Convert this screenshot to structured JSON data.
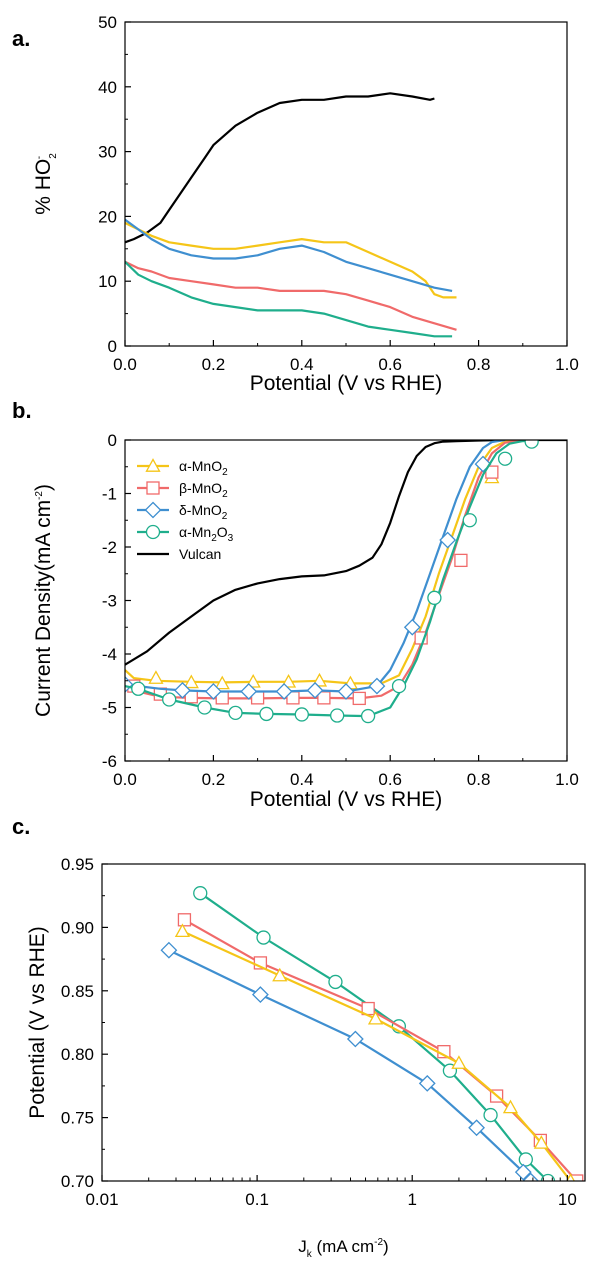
{
  "colors": {
    "alpha_MnO2": "#f5c518",
    "beta_MnO2": "#f06a6a",
    "delta_MnO2": "#3f8fd0",
    "alpha_Mn2O3": "#1fae8c",
    "Vulcan": "#000000"
  },
  "chart_data": [
    {
      "panel": "a.",
      "type": "line",
      "xlabel": "Potential (V vs RHE)",
      "ylabel": "% HO2-",
      "xlim": [
        0.0,
        1.0
      ],
      "ylim": [
        0,
        50
      ],
      "xticks": [
        "0.0",
        "0.2",
        "0.4",
        "0.6",
        "0.8",
        "1.0"
      ],
      "yticks": [
        "0",
        "10",
        "20",
        "30",
        "40",
        "50"
      ],
      "grid": false,
      "series": [
        {
          "key": "Vulcan",
          "x": [
            0.0,
            0.02,
            0.05,
            0.08,
            0.1,
            0.12,
            0.15,
            0.18,
            0.2,
            0.25,
            0.3,
            0.35,
            0.4,
            0.45,
            0.5,
            0.55,
            0.6,
            0.65,
            0.69,
            0.7
          ],
          "y": [
            16,
            16.5,
            17.5,
            19,
            21,
            23,
            26,
            29,
            31,
            34,
            36,
            37.5,
            38,
            38,
            38.5,
            38.5,
            39,
            38.5,
            38,
            38.2
          ]
        },
        {
          "key": "alpha_MnO2",
          "x": [
            0.0,
            0.03,
            0.06,
            0.1,
            0.15,
            0.2,
            0.25,
            0.3,
            0.35,
            0.4,
            0.45,
            0.5,
            0.55,
            0.6,
            0.65,
            0.68,
            0.7,
            0.72,
            0.75
          ],
          "y": [
            19,
            18,
            17,
            16,
            15.5,
            15,
            15,
            15.5,
            16,
            16.5,
            16,
            16,
            14.5,
            13,
            11.5,
            10,
            8,
            7.5,
            7.5
          ]
        },
        {
          "key": "delta_MnO2",
          "x": [
            0.0,
            0.03,
            0.06,
            0.1,
            0.15,
            0.2,
            0.25,
            0.3,
            0.35,
            0.4,
            0.45,
            0.5,
            0.55,
            0.6,
            0.65,
            0.7,
            0.74
          ],
          "y": [
            19.5,
            18,
            16.5,
            15,
            14,
            13.5,
            13.5,
            14,
            15,
            15.5,
            14.5,
            13,
            12,
            11,
            10,
            9,
            8.5
          ]
        },
        {
          "key": "beta_MnO2",
          "x": [
            0.0,
            0.03,
            0.06,
            0.1,
            0.15,
            0.2,
            0.25,
            0.3,
            0.35,
            0.4,
            0.45,
            0.5,
            0.55,
            0.6,
            0.65,
            0.7,
            0.75
          ],
          "y": [
            13,
            12,
            11.5,
            10.5,
            10,
            9.5,
            9,
            9,
            8.5,
            8.5,
            8.5,
            8,
            7,
            6,
            4.5,
            3.5,
            2.5
          ]
        },
        {
          "key": "alpha_Mn2O3",
          "x": [
            0.0,
            0.03,
            0.06,
            0.1,
            0.15,
            0.2,
            0.25,
            0.3,
            0.35,
            0.4,
            0.45,
            0.5,
            0.55,
            0.6,
            0.65,
            0.7,
            0.74
          ],
          "y": [
            13,
            11,
            10,
            9,
            7.5,
            6.5,
            6,
            5.5,
            5.5,
            5.5,
            5,
            4,
            3,
            2.5,
            2,
            1.5,
            1.5
          ]
        }
      ]
    },
    {
      "panel": "b.",
      "type": "line",
      "xlabel": "Potential (V vs RHE)",
      "ylabel": "Current Density(mA cm-2)",
      "xlim": [
        0.0,
        1.0
      ],
      "ylim": [
        -6,
        0
      ],
      "xticks": [
        "0.0",
        "0.2",
        "0.4",
        "0.6",
        "0.8",
        "1.0"
      ],
      "yticks": [
        "0",
        "-1",
        "-2",
        "-3",
        "-4",
        "-5",
        "-6"
      ],
      "grid": false,
      "legend_position": "top-left",
      "legend": [
        {
          "key": "alpha_MnO2",
          "prefix": "α-MnO",
          "sub": "2",
          "mid": "",
          "sub2": "",
          "marker": "triangle"
        },
        {
          "key": "beta_MnO2",
          "prefix": "β-MnO",
          "sub": "2",
          "mid": "",
          "sub2": "",
          "marker": "square"
        },
        {
          "key": "delta_MnO2",
          "prefix": "δ-MnO",
          "sub": "2",
          "mid": "",
          "sub2": "",
          "marker": "diamond"
        },
        {
          "key": "alpha_Mn2O3",
          "prefix": "α-Mn",
          "sub": "2",
          "mid": "O",
          "sub2": "3",
          "marker": "circle"
        },
        {
          "key": "Vulcan",
          "prefix": "Vulcan",
          "sub": "",
          "mid": "",
          "sub2": "",
          "marker": "none"
        }
      ],
      "series": [
        {
          "key": "Vulcan",
          "marker": "none",
          "x": [
            0.0,
            0.05,
            0.1,
            0.15,
            0.2,
            0.25,
            0.3,
            0.35,
            0.4,
            0.45,
            0.5,
            0.53,
            0.56,
            0.58,
            0.6,
            0.62,
            0.64,
            0.66,
            0.68,
            0.7,
            0.72,
            0.75,
            0.8,
            0.85,
            0.9,
            0.95,
            1.0
          ],
          "y": [
            -4.2,
            -3.95,
            -3.6,
            -3.3,
            -3.0,
            -2.8,
            -2.68,
            -2.6,
            -2.55,
            -2.53,
            -2.45,
            -2.35,
            -2.2,
            -1.95,
            -1.55,
            -1.05,
            -0.6,
            -0.3,
            -0.13,
            -0.06,
            -0.03,
            -0.02,
            -0.01,
            0,
            0,
            0,
            0
          ]
        },
        {
          "key": "alpha_MnO2",
          "marker": "triangle",
          "x": [
            0.0,
            0.02,
            0.07,
            0.15,
            0.22,
            0.3,
            0.37,
            0.44,
            0.51,
            0.58,
            0.62,
            0.65,
            0.68,
            0.71,
            0.74,
            0.77,
            0.8,
            0.83,
            0.86,
            0.9
          ],
          "y": [
            -4.3,
            -4.45,
            -4.5,
            -4.52,
            -4.53,
            -4.52,
            -4.52,
            -4.5,
            -4.55,
            -4.55,
            -4.4,
            -3.9,
            -3.3,
            -2.5,
            -1.8,
            -1.1,
            -0.5,
            -0.15,
            -0.03,
            0
          ],
          "mx": [
            0.07,
            0.15,
            0.22,
            0.29,
            0.37,
            0.44,
            0.51,
            0.83
          ],
          "my": [
            -4.45,
            -4.53,
            -4.55,
            -4.52,
            -4.52,
            -4.5,
            -4.55,
            -0.7
          ]
        },
        {
          "key": "beta_MnO2",
          "marker": "square",
          "x": [
            0.0,
            0.03,
            0.08,
            0.15,
            0.22,
            0.3,
            0.38,
            0.45,
            0.53,
            0.58,
            0.62,
            0.65,
            0.68,
            0.71,
            0.74,
            0.77,
            0.8,
            0.83,
            0.86,
            0.9
          ],
          "y": [
            -4.55,
            -4.7,
            -4.8,
            -4.82,
            -4.83,
            -4.83,
            -4.82,
            -4.82,
            -4.83,
            -4.78,
            -4.6,
            -4.2,
            -3.6,
            -2.9,
            -2.2,
            -1.4,
            -0.7,
            -0.25,
            -0.05,
            0
          ],
          "mx": [
            0.02,
            0.08,
            0.15,
            0.22,
            0.3,
            0.38,
            0.45,
            0.53,
            0.67,
            0.76,
            0.83
          ],
          "my": [
            -4.6,
            -4.75,
            -4.8,
            -4.82,
            -4.82,
            -4.82,
            -4.82,
            -4.83,
            -3.7,
            -2.25,
            -0.6
          ]
        },
        {
          "key": "delta_MnO2",
          "marker": "diamond",
          "x": [
            0.0,
            0.03,
            0.08,
            0.13,
            0.2,
            0.28,
            0.36,
            0.43,
            0.5,
            0.57,
            0.6,
            0.63,
            0.66,
            0.69,
            0.72,
            0.75,
            0.78,
            0.81,
            0.83,
            0.86
          ],
          "y": [
            -4.55,
            -4.6,
            -4.65,
            -4.68,
            -4.7,
            -4.7,
            -4.7,
            -4.68,
            -4.7,
            -4.6,
            -4.3,
            -3.8,
            -3.2,
            -2.5,
            -1.8,
            -1.1,
            -0.5,
            -0.15,
            -0.04,
            0
          ],
          "mx": [
            0.0,
            0.13,
            0.2,
            0.28,
            0.36,
            0.43,
            0.5,
            0.57,
            0.65,
            0.73,
            0.81
          ],
          "my": [
            -4.57,
            -4.68,
            -4.7,
            -4.7,
            -4.7,
            -4.68,
            -4.7,
            -4.6,
            -3.5,
            -1.87,
            -0.45
          ]
        },
        {
          "key": "alpha_Mn2O3",
          "marker": "circle",
          "x": [
            0.0,
            0.03,
            0.1,
            0.18,
            0.25,
            0.32,
            0.4,
            0.48,
            0.55,
            0.6,
            0.63,
            0.66,
            0.69,
            0.72,
            0.75,
            0.78,
            0.81,
            0.84,
            0.87,
            0.9,
            0.93
          ],
          "y": [
            -4.6,
            -4.65,
            -4.85,
            -5.0,
            -5.1,
            -5.12,
            -5.13,
            -5.15,
            -5.16,
            -5.0,
            -4.6,
            -4.1,
            -3.4,
            -2.6,
            -1.9,
            -1.25,
            -0.65,
            -0.25,
            -0.07,
            -0.02,
            0
          ],
          "mx": [
            0.03,
            0.1,
            0.18,
            0.25,
            0.32,
            0.4,
            0.48,
            0.55,
            0.62,
            0.7,
            0.78,
            0.86,
            0.92
          ],
          "my": [
            -4.65,
            -4.85,
            -5.0,
            -5.1,
            -5.12,
            -5.13,
            -5.15,
            -5.16,
            -4.6,
            -2.95,
            -1.5,
            -0.35,
            -0.03
          ]
        }
      ]
    },
    {
      "panel": "c.",
      "type": "line",
      "xscale": "log",
      "xlabel": "Jk (mA cm-2)",
      "ylabel": "Potential (V vs RHE)",
      "xlim": [
        0.01,
        13
      ],
      "ylim": [
        0.7,
        0.95
      ],
      "xticks": [
        "0.01",
        "0.1",
        "1",
        "10"
      ],
      "yticks": [
        "0.70",
        "0.75",
        "0.80",
        "0.85",
        "0.90",
        "0.95"
      ],
      "grid": false,
      "series": [
        {
          "key": "alpha_Mn2O3",
          "marker": "circle",
          "x": [
            0.043,
            0.11,
            0.32,
            0.82,
            1.75,
            3.2,
            5.4,
            7.5
          ],
          "y": [
            0.927,
            0.892,
            0.857,
            0.822,
            0.787,
            0.752,
            0.717,
            0.7
          ]
        },
        {
          "key": "beta_MnO2",
          "marker": "square",
          "x": [
            0.034,
            0.105,
            0.52,
            1.6,
            3.5,
            6.7,
            11.5
          ],
          "y": [
            0.906,
            0.872,
            0.836,
            0.802,
            0.767,
            0.732,
            0.7
          ]
        },
        {
          "key": "alpha_MnO2",
          "marker": "triangle",
          "x": [
            0.033,
            0.14,
            0.58,
            2.0,
            4.3,
            6.8,
            10.5
          ],
          "y": [
            0.897,
            0.862,
            0.828,
            0.793,
            0.758,
            0.73,
            0.7
          ]
        },
        {
          "key": "delta_MnO2",
          "marker": "diamond",
          "x": [
            0.027,
            0.105,
            0.43,
            1.25,
            2.6,
            5.2,
            5.8
          ],
          "y": [
            0.882,
            0.847,
            0.812,
            0.777,
            0.742,
            0.707,
            0.7
          ]
        }
      ]
    }
  ]
}
